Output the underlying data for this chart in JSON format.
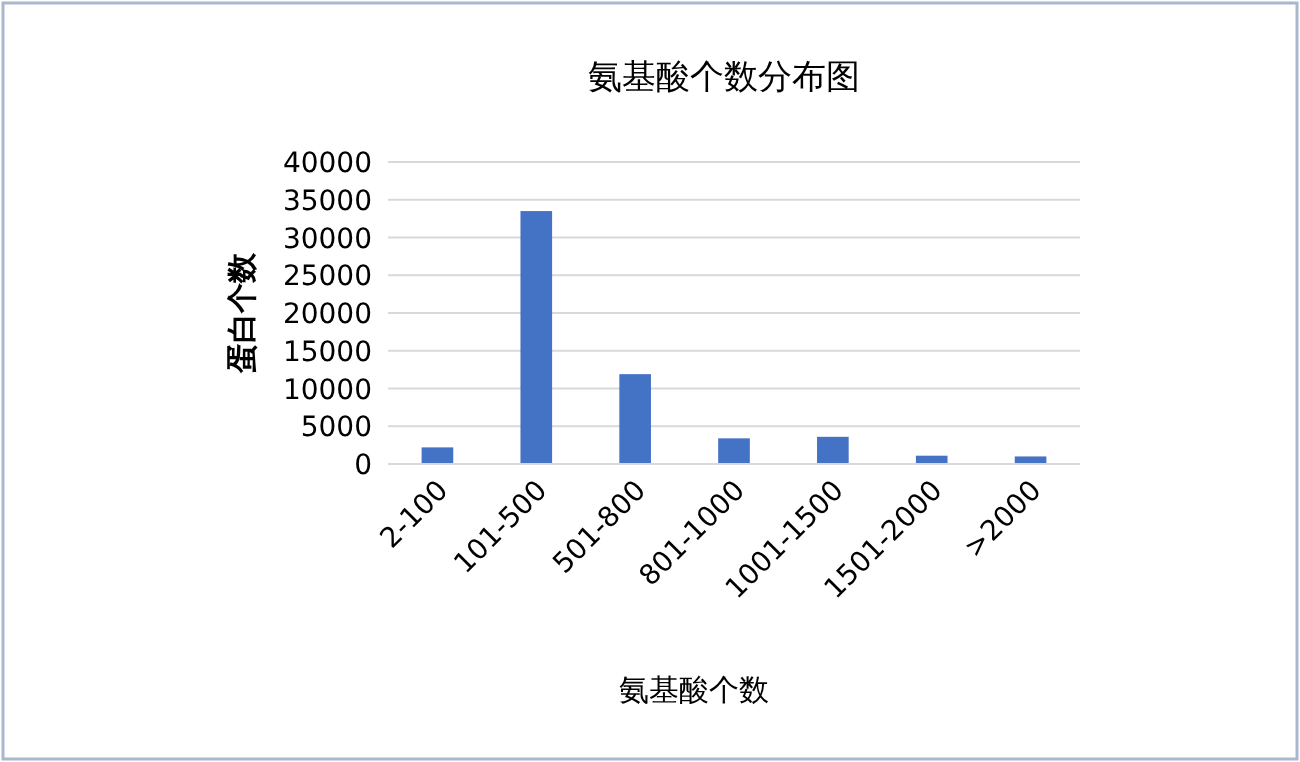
{
  "chart_data": {
    "type": "bar",
    "title": "氨基酸个数分布图",
    "xlabel": "氨基酸个数",
    "ylabel": "蛋白个数",
    "categories": [
      "2-100",
      "101-500",
      "501-800",
      "801-1000",
      "1001-1500",
      "1501-2000",
      ">2000"
    ],
    "values": [
      2200,
      33500,
      11900,
      3400,
      3600,
      1100,
      1000
    ],
    "color": "#4472c4",
    "ylim": [
      0,
      40000
    ],
    "yticks": [
      0,
      5000,
      10000,
      15000,
      20000,
      25000,
      30000,
      35000,
      40000
    ],
    "grid": "y"
  }
}
